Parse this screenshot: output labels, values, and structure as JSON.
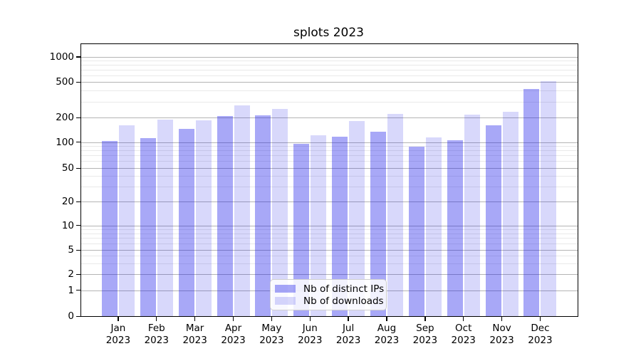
{
  "chart_data": {
    "type": "bar",
    "title": "splots 2023",
    "categories": [
      "Jan",
      "Feb",
      "Mar",
      "Apr",
      "May",
      "Jun",
      "Jul",
      "Aug",
      "Sep",
      "Oct",
      "Nov",
      "Dec"
    ],
    "category_year_line": "2023",
    "series": [
      {
        "name": "Nb of distinct IPs",
        "color_hex": "#a6a6f1",
        "color_rgba": "rgba(13,13,232,0.36)",
        "values": [
          104,
          111,
          146,
          208,
          210,
          95,
          116,
          135,
          89,
          106,
          159,
          414
        ]
      },
      {
        "name": "Nb of downloads",
        "color_hex": "#dcdcfa",
        "color_rgba": "rgba(13,13,232,0.16)",
        "values": [
          160,
          190,
          186,
          275,
          250,
          122,
          180,
          218,
          113,
          215,
          230,
          505
        ]
      }
    ],
    "yaxis": {
      "scale": "log-like with linear zero region",
      "ticks": [
        0,
        1,
        2,
        5,
        10,
        20,
        50,
        100,
        200,
        500,
        1000
      ],
      "tick_labels": [
        "0",
        "1",
        "2",
        "5",
        "10",
        "20",
        "50",
        "100",
        "200",
        "500",
        "1000"
      ]
    },
    "xaxis": {
      "tick_labels_line1": [
        "Jan",
        "Feb",
        "Mar",
        "Apr",
        "May",
        "Jun",
        "Jul",
        "Aug",
        "Sep",
        "Oct",
        "Nov",
        "Dec"
      ],
      "tick_labels_line2": [
        "2023",
        "2023",
        "2023",
        "2023",
        "2023",
        "2023",
        "2023",
        "2023",
        "2023",
        "2023",
        "2023",
        "2023"
      ]
    },
    "grid": {
      "major": true,
      "minor": true,
      "major_color": "#b4b4b4",
      "minor_color": "#e9e9e9"
    },
    "legend": {
      "position": "lower center",
      "entries": [
        "Nb of distinct IPs",
        "Nb of downloads"
      ]
    }
  }
}
